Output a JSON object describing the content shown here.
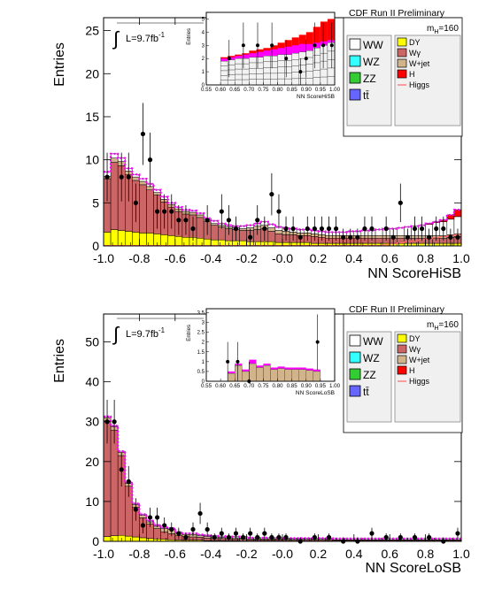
{
  "chart_data": [
    {
      "type": "bar",
      "stacked": true,
      "xlabel": "NN ScoreHiSB",
      "ylabel": "Entries",
      "xlim": [
        -1.0,
        1.0
      ],
      "ylim": [
        0,
        26.5
      ],
      "xticks": [
        -1.0,
        -0.8,
        -0.6,
        -0.4,
        -0.2,
        -0.0,
        0.2,
        0.4,
        0.6,
        0.8,
        1.0
      ],
      "xtick_labels": [
        "-1.0",
        "-0.8",
        "-0.6",
        "-0.4",
        "-0.2",
        "-0.0",
        "0.2",
        "0.4",
        "0.6",
        "0.8",
        "1.0"
      ],
      "yticks": [
        0,
        5,
        10,
        15,
        20,
        25
      ],
      "ytick_labels": [
        "0",
        "5",
        "10",
        "15",
        "20",
        "25"
      ],
      "header": "CDF Run II Preliminary",
      "mass_label": "m",
      "mass_sub": "H",
      "mass_value": "=160",
      "lumi_label": "L=9.7fb",
      "lumi_sup": "-1",
      "bins_edges": [
        -1.0,
        0.0,
        1.0
      ],
      "bins_count": 50,
      "stack_totals": [
        8.6,
        10.7,
        10.2,
        9.0,
        8.3,
        7.8,
        7.2,
        6.5,
        5.7,
        5.0,
        4.5,
        4.2,
        4.1,
        3.8,
        3.2,
        2.9,
        2.6,
        2.4,
        2.3,
        2.3,
        2.4,
        2.6,
        2.8,
        2.5,
        2.2,
        2.1,
        2.0,
        1.9,
        1.9,
        1.8,
        1.7,
        1.6,
        1.6,
        1.6,
        1.7,
        1.7,
        1.8,
        1.8,
        1.9,
        2.0,
        2.0,
        2.1,
        2.2,
        2.3,
        2.4,
        2.6,
        2.8,
        3.0,
        3.6,
        4.2
      ],
      "series": [
        {
          "name": "DY",
          "color": "#ffff00",
          "values": [
            1.6,
            1.9,
            1.8,
            1.7,
            1.6,
            1.5,
            1.5,
            1.4,
            1.3,
            1.2,
            1.1,
            1.0,
            1.0,
            0.9,
            0.8,
            0.7,
            0.7,
            0.6,
            0.6,
            0.6,
            0.5,
            0.5,
            0.5,
            0.5,
            0.4,
            0.4,
            0.4,
            0.4,
            0.4,
            0.3,
            0.3,
            0.3,
            0.3,
            0.3,
            0.3,
            0.3,
            0.3,
            0.3,
            0.3,
            0.3,
            0.3,
            0.3,
            0.3,
            0.3,
            0.3,
            0.3,
            0.3,
            0.3,
            0.3,
            0.3
          ]
        },
        {
          "name": "Wγ",
          "color": "#cc6666",
          "values": [
            6.2,
            7.8,
            7.5,
            6.6,
            6.0,
            5.6,
            5.0,
            4.5,
            3.8,
            3.3,
            2.9,
            2.7,
            2.6,
            2.4,
            2.0,
            1.7,
            1.5,
            1.4,
            1.3,
            1.2,
            1.3,
            1.4,
            1.5,
            1.2,
            1.0,
            0.9,
            0.9,
            0.8,
            0.8,
            0.8,
            0.7,
            0.6,
            0.6,
            0.6,
            0.6,
            0.6,
            0.6,
            0.6,
            0.6,
            0.6,
            0.6,
            0.6,
            0.6,
            0.6,
            0.6,
            0.6,
            0.6,
            0.6,
            0.7,
            0.8
          ]
        },
        {
          "name": "W+jet",
          "color": "#d2b48c",
          "values": [
            0.3,
            0.5,
            0.5,
            0.4,
            0.4,
            0.4,
            0.4,
            0.3,
            0.3,
            0.3,
            0.3,
            0.3,
            0.3,
            0.3,
            0.2,
            0.2,
            0.2,
            0.2,
            0.2,
            0.2,
            0.3,
            0.4,
            0.4,
            0.4,
            0.4,
            0.4,
            0.3,
            0.3,
            0.3,
            0.3,
            0.3,
            0.3,
            0.3,
            0.3,
            0.3,
            0.3,
            0.3,
            0.3,
            0.3,
            0.3,
            0.3,
            0.3,
            0.3,
            0.3,
            0.3,
            0.3,
            0.3,
            0.3,
            0.3,
            0.3
          ]
        },
        {
          "name": "WW",
          "color": "#ffffff",
          "values": [
            0.5,
            0.5,
            0.4,
            0.3,
            0.3,
            0.3,
            0.3,
            0.3,
            0.3,
            0.2,
            0.2,
            0.2,
            0.2,
            0.2,
            0.2,
            0.3,
            0.2,
            0.2,
            0.2,
            0.3,
            0.3,
            0.3,
            0.4,
            0.4,
            0.4,
            0.4,
            0.4,
            0.4,
            0.4,
            0.4,
            0.4,
            0.4,
            0.4,
            0.4,
            0.5,
            0.5,
            0.6,
            0.6,
            0.7,
            0.8,
            0.8,
            0.9,
            1.0,
            1.1,
            1.2,
            1.3,
            1.5,
            1.6,
            1.8,
            2.0
          ]
        },
        {
          "name": "H",
          "color": "#ff0000",
          "values": [
            0,
            0,
            0,
            0,
            0,
            0,
            0,
            0,
            0,
            0,
            0,
            0,
            0,
            0,
            0,
            0,
            0,
            0,
            0,
            0,
            0,
            0,
            0,
            0,
            0,
            0,
            0,
            0,
            0,
            0,
            0,
            0,
            0,
            0,
            0,
            0,
            0,
            0,
            0,
            0,
            0,
            0,
            0,
            0,
            0,
            0.1,
            0.1,
            0.2,
            0.5,
            0.8
          ]
        }
      ],
      "envelope_color": "#ff00ff",
      "higgs_line_color": "#ff6666",
      "data_points": {
        "name": "Data",
        "x": [
          -0.98,
          -0.9,
          -0.86,
          -0.82,
          -0.78,
          -0.74,
          -0.7,
          -0.66,
          -0.62,
          -0.58,
          -0.54,
          -0.5,
          -0.42,
          -0.34,
          -0.3,
          -0.26,
          -0.18,
          -0.14,
          -0.1,
          -0.06,
          -0.02,
          0.02,
          0.06,
          0.1,
          0.14,
          0.18,
          0.22,
          0.26,
          0.3,
          0.34,
          0.38,
          0.42,
          0.46,
          0.5,
          0.58,
          0.62,
          0.66,
          0.7,
          0.74,
          0.78,
          0.82,
          0.86,
          0.9,
          0.94,
          0.98
        ],
        "y": [
          8,
          8,
          8,
          5,
          13,
          10,
          4,
          4,
          4,
          3,
          3,
          2,
          3,
          4,
          3,
          2,
          1,
          3,
          2,
          6,
          4,
          2,
          2,
          1,
          2,
          2,
          2,
          2,
          2,
          1,
          1,
          1,
          2,
          2,
          2,
          1,
          5,
          1,
          2,
          2,
          1,
          2,
          2,
          1,
          1
        ]
      },
      "legend": {
        "left": [
          "WW",
          "WZ",
          "ZZ",
          "tt̄"
        ],
        "right": [
          "DY",
          "Wγ",
          "W+jet",
          "H",
          "Higgs"
        ],
        "colors": {
          "WW": "#ffffff",
          "WZ": "#33ffff",
          "ZZ": "#33cc33",
          "tt̄": "#6666ff",
          "DY": "#ffff00",
          "Wγ": "#cc6666",
          "W+jet": "#d2b48c",
          "H": "#ff0000",
          "Higgs": "#ff6666"
        }
      },
      "inset": {
        "xlabel": "NN ScoreHiSB",
        "ylabel": "Entries",
        "xlim": [
          0.55,
          1.0
        ],
        "ylim": [
          0,
          5.5
        ],
        "xtick_labels": [
          "0.55",
          "0.60",
          "0.65",
          "0.70",
          "0.75",
          "0.80",
          "0.85",
          "0.90",
          "0.95",
          "1.00"
        ],
        "ytick_labels": [
          "0",
          "1",
          "2",
          "3",
          "4",
          "5"
        ],
        "yticks": [
          0,
          1,
          2,
          3,
          4,
          5
        ],
        "bins_x": [
          0.6,
          0.625,
          0.65,
          0.675,
          0.7,
          0.725,
          0.75,
          0.775,
          0.8,
          0.825,
          0.85,
          0.875,
          0.9,
          0.925,
          0.95,
          0.975
        ],
        "red_top": [
          2.1,
          2.2,
          2.3,
          2.4,
          2.6,
          2.7,
          2.8,
          3.0,
          3.2,
          3.4,
          3.6,
          3.8,
          4.0,
          4.4,
          4.8,
          5.0
        ],
        "magenta_top": [
          2.0,
          2.1,
          2.2,
          2.3,
          2.4,
          2.5,
          2.6,
          2.7,
          2.8,
          2.9,
          3.0,
          3.1,
          3.1,
          3.2,
          3.3,
          3.4
        ],
        "bkg_top": [
          1.8,
          1.9,
          2.0,
          2.0,
          2.1,
          2.1,
          2.2,
          2.2,
          2.3,
          2.3,
          2.4,
          2.5,
          2.6,
          2.8,
          3.0,
          3.2
        ],
        "data_x": [
          0.63,
          0.68,
          0.73,
          0.78,
          0.83,
          0.88,
          0.9,
          0.93,
          0.96,
          0.99
        ],
        "data_y": [
          2,
          3,
          3,
          3,
          2,
          1,
          2,
          3,
          3,
          3
        ]
      }
    },
    {
      "type": "bar",
      "stacked": true,
      "xlabel": "NN ScoreLoSB",
      "ylabel": "Entries",
      "xlim": [
        -1.0,
        1.0
      ],
      "ylim": [
        0,
        57
      ],
      "xticks": [
        -1.0,
        -0.8,
        -0.6,
        -0.4,
        -0.2,
        -0.0,
        0.2,
        0.4,
        0.6,
        0.8,
        1.0
      ],
      "xtick_labels": [
        "-1.0",
        "-0.8",
        "-0.6",
        "-0.4",
        "-0.2",
        "-0.0",
        "0.2",
        "0.4",
        "0.6",
        "0.8",
        "1.0"
      ],
      "yticks": [
        0,
        10,
        20,
        30,
        40,
        50
      ],
      "ytick_labels": [
        "0",
        "10",
        "20",
        "30",
        "40",
        "50"
      ],
      "header": "CDF Run II Preliminary",
      "mass_label": "m",
      "mass_sub": "H",
      "mass_value": "=160",
      "lumi_label": "L=9.7fb",
      "lumi_sup": "-1",
      "bins_count": 50,
      "series": [
        {
          "name": "DY",
          "color": "#ffff00",
          "values": [
            1.2,
            1.4,
            1.5,
            1.3,
            1.1,
            0.9,
            0.7,
            0.6,
            0.5,
            0.4,
            0.3,
            0.3,
            0.3,
            0.3,
            0.2,
            0.2,
            0.2,
            0.2,
            0.2,
            0.1,
            0.1,
            0.1,
            0.1,
            0.1,
            0.1,
            0.1,
            0.1,
            0.1,
            0.1,
            0.1,
            0.1,
            0.1,
            0.1,
            0.1,
            0.1,
            0.1,
            0.1,
            0.1,
            0.1,
            0.1,
            0.1,
            0.1,
            0.1,
            0.1,
            0.1,
            0.1,
            0.1,
            0.1,
            0.1,
            0.1
          ]
        },
        {
          "name": "Wγ",
          "color": "#cc6666",
          "values": [
            29.0,
            26.5,
            20.0,
            12.5,
            7.5,
            5.0,
            3.6,
            2.6,
            1.9,
            1.5,
            1.1,
            0.9,
            0.8,
            0.7,
            0.6,
            0.5,
            0.5,
            0.4,
            0.4,
            0.4,
            0.3,
            0.3,
            0.3,
            0.3,
            0.3,
            0.2,
            0.2,
            0.2,
            0.2,
            0.2,
            0.2,
            0.2,
            0.2,
            0.2,
            0.2,
            0.2,
            0.2,
            0.2,
            0.2,
            0.2,
            0.2,
            0.2,
            0.2,
            0.2,
            0.2,
            0.2,
            0.2,
            0.2,
            0.2,
            0.2
          ]
        },
        {
          "name": "W+jet",
          "color": "#d2b48c",
          "values": [
            0.8,
            0.8,
            0.8,
            0.7,
            0.6,
            0.6,
            0.6,
            0.6,
            0.8,
            1.1,
            0.6,
            0.5,
            0.6,
            0.4,
            0.4,
            0.4,
            0.3,
            0.3,
            0.3,
            0.3,
            0.2,
            0.2,
            0.2,
            0.2,
            0.2,
            0.2,
            0.2,
            0.2,
            0.2,
            0.2,
            0.2,
            0.2,
            0.1,
            0.1,
            0.1,
            0.1,
            0.1,
            0.1,
            0.1,
            0.1,
            0.1,
            0.1,
            0.1,
            0.1,
            0.1,
            0.1,
            0.1,
            0.1,
            0.1,
            0.1
          ]
        },
        {
          "name": "WW",
          "color": "#ffffff",
          "values": [
            0.3,
            0.3,
            0.3,
            0.3,
            0.3,
            0.3,
            0.3,
            0.3,
            0.3,
            0.3,
            0.3,
            0.3,
            0.3,
            0.3,
            0.3,
            0.3,
            0.3,
            0.3,
            0.3,
            0.3,
            0.3,
            0.3,
            0.3,
            0.3,
            0.3,
            0.3,
            0.3,
            0.3,
            0.3,
            0.3,
            0.3,
            0.3,
            0.3,
            0.3,
            0.3,
            0.3,
            0.3,
            0.3,
            0.3,
            0.3,
            0.3,
            0.3,
            0.3,
            0.3,
            0.3,
            0.3,
            0.3,
            0.3,
            0.3,
            0.3
          ]
        }
      ],
      "envelope_color": "#ff00ff",
      "data_points": {
        "name": "Data",
        "x": [
          -0.98,
          -0.94,
          -0.9,
          -0.86,
          -0.82,
          -0.78,
          -0.74,
          -0.7,
          -0.66,
          -0.62,
          -0.58,
          -0.54,
          -0.5,
          -0.46,
          -0.42,
          -0.38,
          -0.34,
          -0.3,
          -0.26,
          -0.22,
          -0.18,
          -0.14,
          -0.1,
          -0.06,
          -0.02,
          0.02,
          0.1,
          0.18,
          0.26,
          0.34,
          0.42,
          0.5,
          0.58,
          0.66,
          0.74,
          0.82,
          0.9,
          0.98
        ],
        "y": [
          30,
          30,
          18,
          15,
          8,
          4,
          6,
          6,
          4,
          3,
          2,
          1,
          3,
          7,
          3,
          1,
          2,
          1,
          2,
          1,
          2,
          1,
          2,
          1,
          1,
          1,
          0,
          1,
          1,
          0,
          0,
          2,
          1,
          1,
          1,
          1,
          0,
          2
        ]
      },
      "legend": {
        "left": [
          "WW",
          "WZ",
          "ZZ",
          "tt̄"
        ],
        "right": [
          "DY",
          "Wγ",
          "W+jet",
          "H",
          "Higgs"
        ],
        "colors": {
          "WW": "#ffffff",
          "WZ": "#33ffff",
          "ZZ": "#33cc33",
          "tt̄": "#6666ff",
          "DY": "#ffff00",
          "Wγ": "#cc6666",
          "W+jet": "#d2b48c",
          "H": "#ff0000",
          "Higgs": "#ff6666"
        }
      },
      "inset": {
        "xlabel": "NN ScoreLoSB",
        "ylabel": "Entries",
        "xlim": [
          0.55,
          1.0
        ],
        "ylim": [
          0,
          3.7
        ],
        "xtick_labels": [
          "0.55",
          "0.60",
          "0.65",
          "0.70",
          "0.75",
          "0.80",
          "0.85",
          "0.90",
          "0.95",
          "1.00"
        ],
        "ytick_labels": [
          "0",
          "0.5",
          "1",
          "1.5",
          "2",
          "2.5",
          "3",
          "3.5"
        ],
        "yticks": [
          0,
          0.5,
          1,
          1.5,
          2,
          2.5,
          3,
          3.5
        ],
        "bins_x": [
          0.6,
          0.625,
          0.65,
          0.675,
          0.7,
          0.725,
          0.75,
          0.775,
          0.8,
          0.825,
          0.85,
          0.875,
          0.9,
          0.925,
          0.95
        ],
        "magenta_top": [
          0.0,
          0.5,
          0.9,
          0.6,
          1.1,
          0.8,
          0.9,
          0.7,
          0.75,
          0.7,
          0.7,
          0.7,
          0.65,
          0.6,
          0.0
        ],
        "bkg_top": [
          0.0,
          0.4,
          0.8,
          0.5,
          0.9,
          0.7,
          0.8,
          0.6,
          0.65,
          0.6,
          0.6,
          0.6,
          0.55,
          0.5,
          0.0
        ],
        "data_x": [
          0.625,
          0.66,
          0.7,
          0.94
        ],
        "data_y": [
          1,
          1,
          0,
          2
        ]
      }
    }
  ]
}
